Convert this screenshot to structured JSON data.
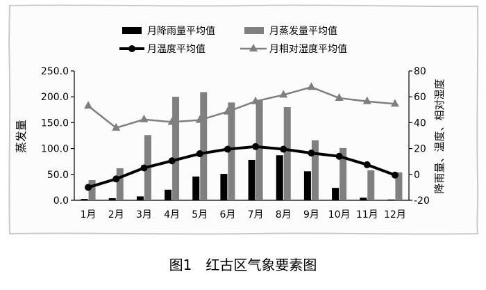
{
  "legend": {
    "precip": "月降雨量平均值",
    "evap": "月蒸发量平均值",
    "temp": "月温度平均值",
    "humidity": "月相对湿度平均值"
  },
  "left_axis_label": "蒸发量",
  "right_axis_label": "降雨量、温度、相对湿度",
  "caption": "图1　红古区气象要素图",
  "chart_data": {
    "type": "bar",
    "categories": [
      "1月",
      "2月",
      "3月",
      "4月",
      "5月",
      "6月",
      "7月",
      "8月",
      "9月",
      "10月",
      "11月",
      "12月"
    ],
    "left_axis": {
      "ylim": [
        0,
        250
      ],
      "ticks": [
        "0.0",
        "50.0",
        "100.0",
        "150.0",
        "200.0",
        "250.0"
      ]
    },
    "right_axis": {
      "ylim": [
        -20,
        80
      ],
      "ticks": [
        "-20",
        "0",
        "20",
        "40",
        "60",
        "80"
      ]
    },
    "series": [
      {
        "name": "月降雨量平均值",
        "kind": "bar",
        "axis": "left",
        "color": "#000000",
        "values": [
          2.5,
          4.0,
          7.5,
          20.5,
          46.0,
          51.0,
          78.0,
          87.0,
          56.0,
          24.0,
          5.0,
          1.5
        ]
      },
      {
        "name": "月蒸发量平均值",
        "kind": "bar",
        "axis": "left",
        "color": "#808080",
        "values": [
          39.0,
          62.0,
          126.0,
          200.0,
          209.0,
          189.0,
          193.0,
          180.0,
          116.0,
          101.0,
          58.0,
          54.0
        ]
      },
      {
        "name": "月温度平均值",
        "kind": "line",
        "axis": "right",
        "marker": "circle",
        "color": "#000000",
        "values": [
          -10.0,
          -3.5,
          5.0,
          10.5,
          16.0,
          19.5,
          21.5,
          19.5,
          16.5,
          14.0,
          7.5,
          -0.5
        ]
      },
      {
        "name": "月相对湿度平均值",
        "kind": "line",
        "axis": "right",
        "marker": "triangle",
        "color": "#7f7f7f",
        "values": [
          53.0,
          36.0,
          42.5,
          40.5,
          42.0,
          48.5,
          56.5,
          61.5,
          67.5,
          59.0,
          56.5,
          54.5
        ]
      }
    ],
    "grid": false,
    "legend_position": "top"
  }
}
